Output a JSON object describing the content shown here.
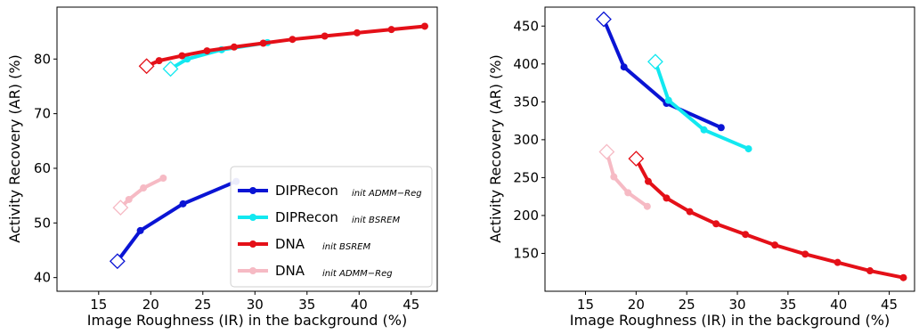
{
  "chart_data": [
    {
      "type": "line",
      "xlabel": "Image Roughness (IR) in the background (%)",
      "ylabel": "Activity Recovery (AR) (%)",
      "xlim": [
        11,
        47.5
      ],
      "ylim": [
        37.5,
        89.5
      ],
      "xticks": [
        "15",
        "20",
        "25",
        "30",
        "35",
        "40",
        "45"
      ],
      "yticks": [
        "40",
        "50",
        "60",
        "70",
        "80"
      ],
      "grid": false,
      "legend": "lower-right",
      "series": [
        {
          "name": "DIPRecon",
          "subscript": "init ADMM−Reg",
          "color": "#0a14d4",
          "x": [
            16.8,
            19.0,
            23.1,
            28.2
          ],
          "y": [
            43.0,
            48.6,
            53.5,
            57.6
          ]
        },
        {
          "name": "DIPRecon",
          "subscript": "init BSREM",
          "color": "#12e8f0",
          "x": [
            21.9,
            23.5,
            26.8,
            31.2
          ],
          "y": [
            78.2,
            80.0,
            81.7,
            83.0
          ]
        },
        {
          "name": "DNA",
          "subscript": "init BSREM",
          "color": "#e41018",
          "x": [
            19.6,
            20.8,
            23.0,
            25.4,
            28.0,
            30.8,
            33.6,
            36.7,
            39.8,
            43.1,
            46.3
          ],
          "y": [
            78.7,
            79.7,
            80.6,
            81.5,
            82.2,
            82.9,
            83.6,
            84.2,
            84.8,
            85.4,
            86.0
          ]
        },
        {
          "name": "DNA",
          "subscript": "init ADMM−Reg",
          "color": "#f6bac4",
          "x": [
            17.1,
            17.9,
            19.3,
            21.2
          ],
          "y": [
            52.8,
            54.3,
            56.4,
            58.2
          ]
        }
      ]
    },
    {
      "type": "line",
      "xlabel": "Image Roughness (IR) in the background (%)",
      "ylabel": "Activity Recovery (AR) (%)",
      "xlim": [
        11,
        47.5
      ],
      "ylim": [
        100,
        475
      ],
      "xticks": [
        "15",
        "20",
        "25",
        "30",
        "35",
        "40",
        "45"
      ],
      "yticks": [
        "150",
        "200",
        "250",
        "300",
        "350",
        "400",
        "450"
      ],
      "grid": false,
      "series": [
        {
          "color": "#0a14d4",
          "x": [
            16.8,
            18.8,
            23.0,
            28.4
          ],
          "y": [
            459,
            396,
            348,
            316
          ]
        },
        {
          "color": "#12e8f0",
          "x": [
            21.9,
            23.2,
            26.7,
            31.1
          ],
          "y": [
            403,
            352,
            313,
            288
          ]
        },
        {
          "color": "#e41018",
          "x": [
            20.0,
            21.2,
            23.0,
            25.3,
            27.9,
            30.8,
            33.7,
            36.7,
            39.9,
            43.1,
            46.4
          ],
          "y": [
            275,
            245,
            223,
            205,
            189,
            175,
            161,
            149,
            138,
            127,
            118
          ]
        },
        {
          "color": "#f6bac4",
          "x": [
            17.1,
            17.8,
            19.2,
            21.1
          ],
          "y": [
            284,
            251,
            230,
            212
          ]
        }
      ]
    }
  ]
}
